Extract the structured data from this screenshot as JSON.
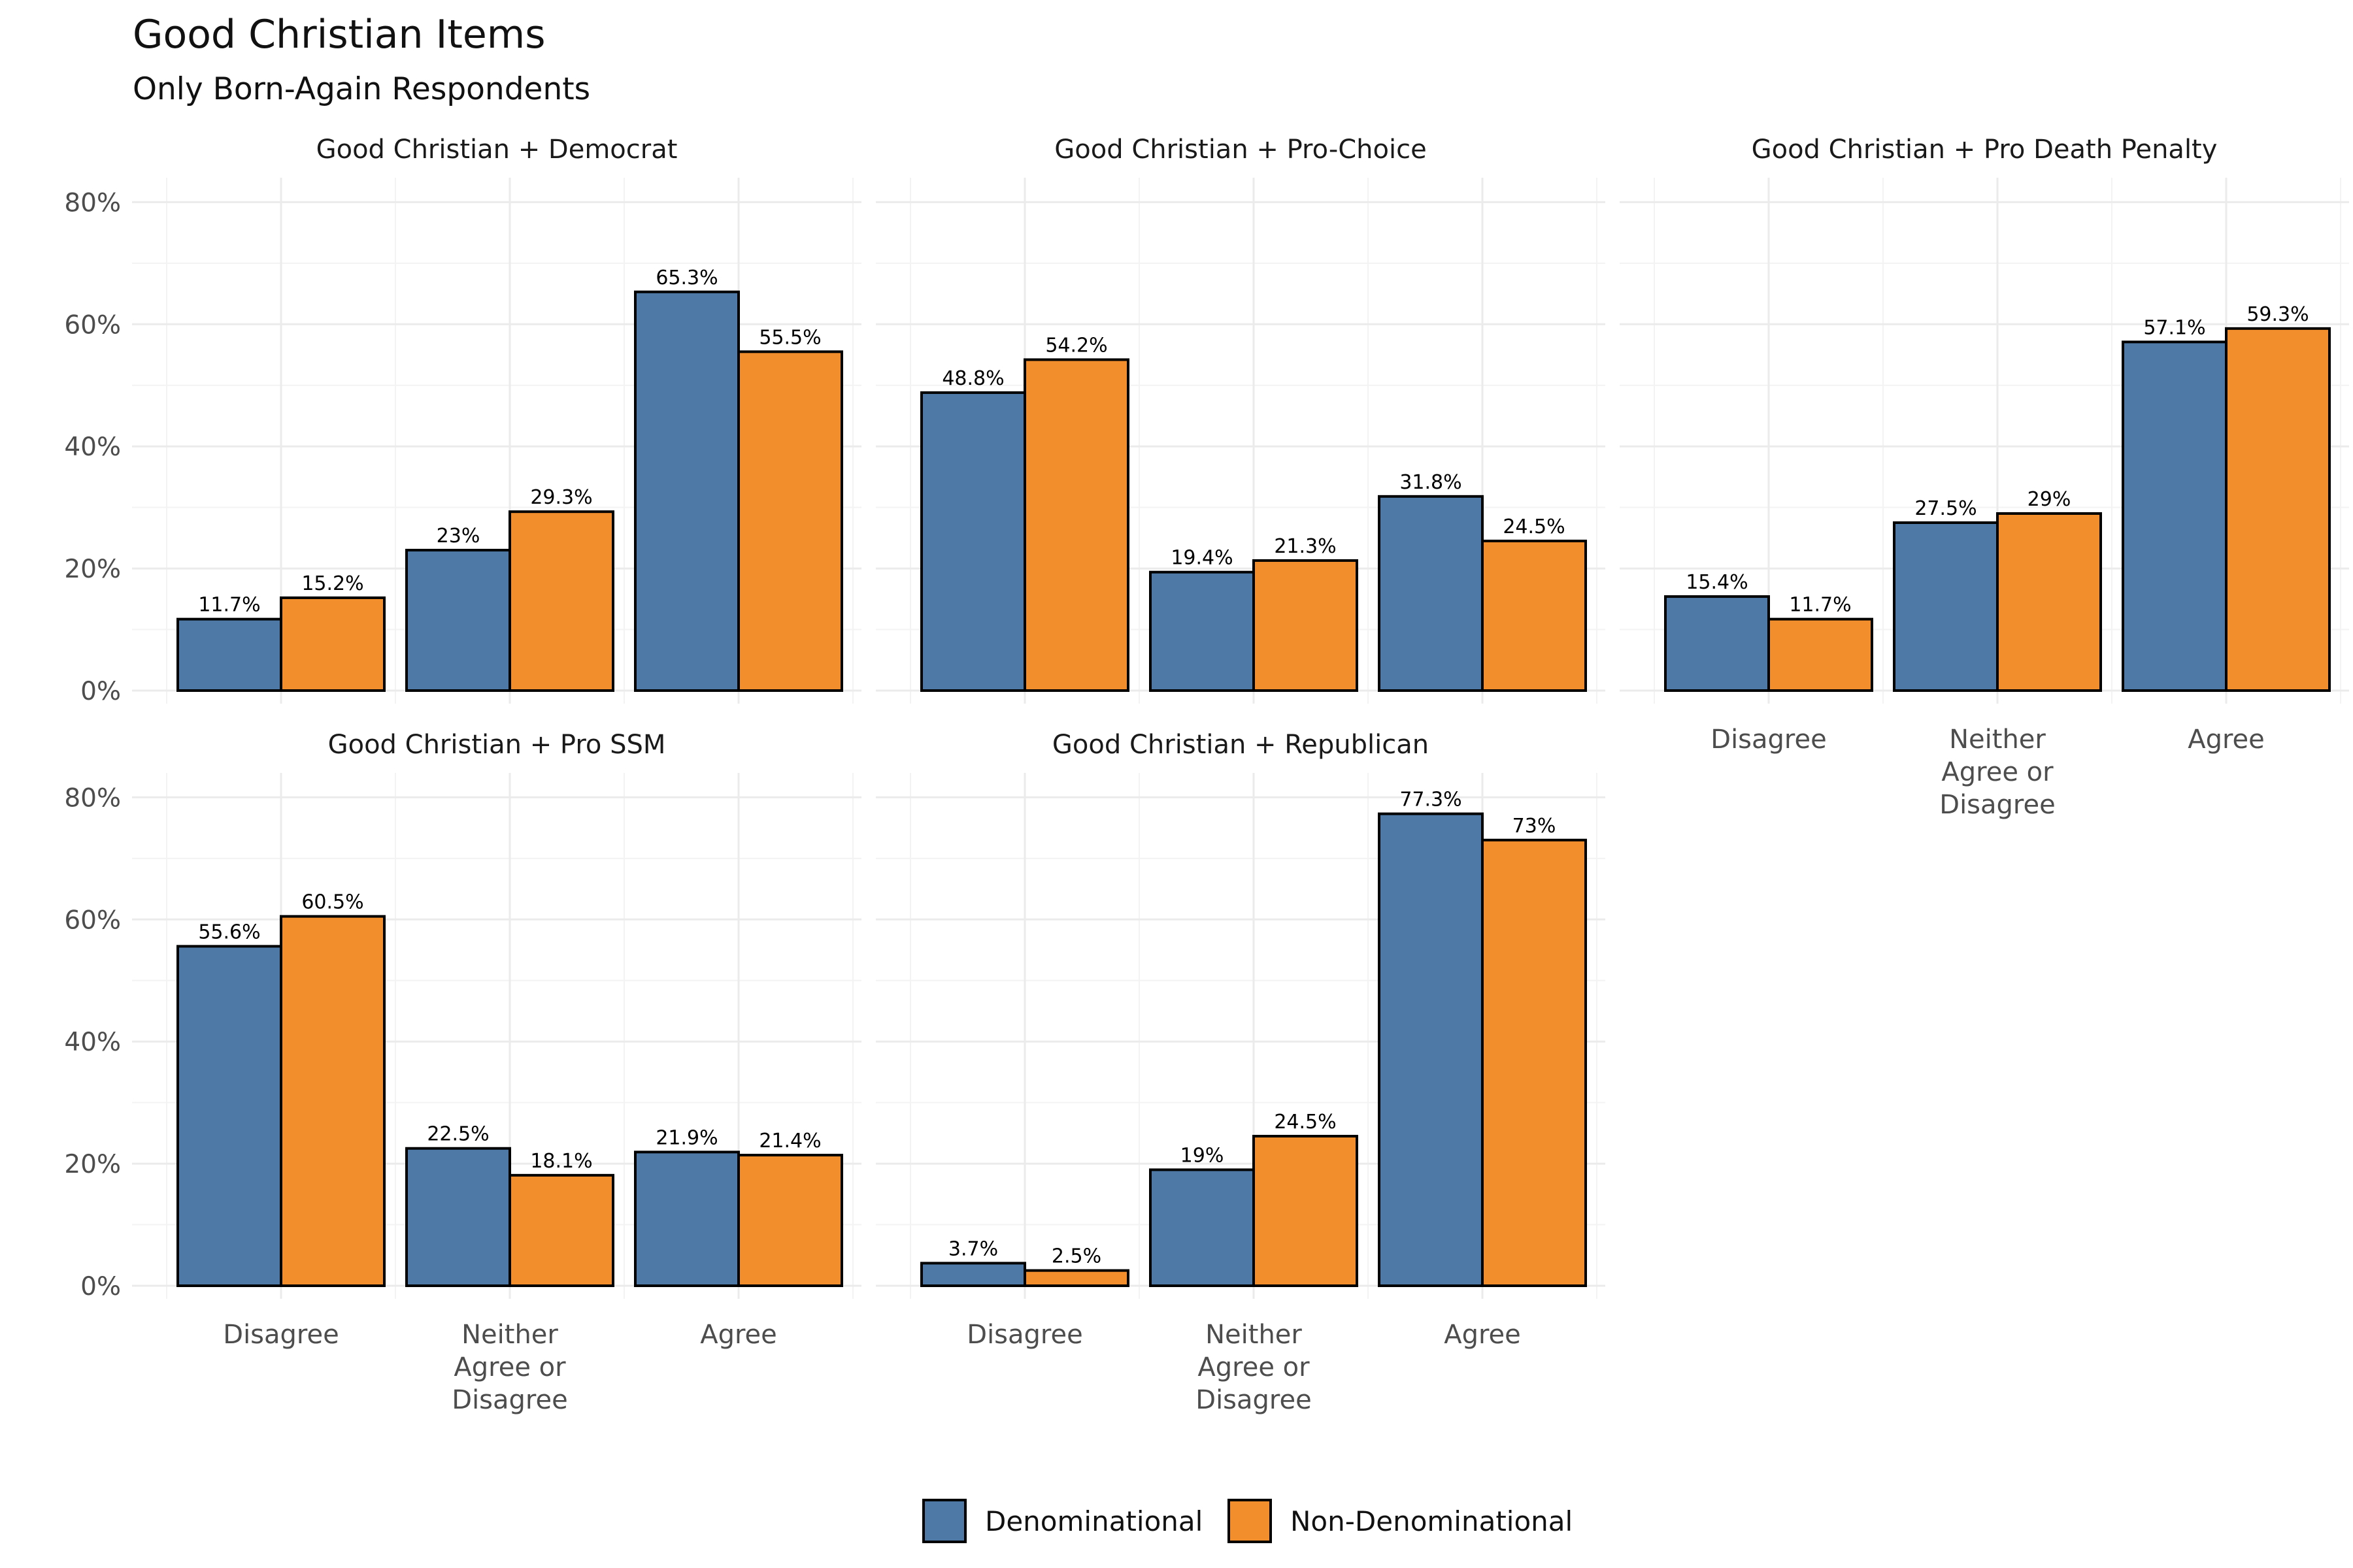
{
  "chart_data": {
    "type": "bar",
    "title": "Good Christian Items",
    "subtitle": "Only Born-Again Respondents",
    "categories": [
      "Disagree",
      "Neither Agree or Disagree",
      "Agree"
    ],
    "category_display": [
      [
        "Disagree"
      ],
      [
        "Neither",
        "Agree or",
        "Disagree"
      ],
      [
        "Agree"
      ]
    ],
    "y_ticks": [
      "0%",
      "20%",
      "40%",
      "60%",
      "80%"
    ],
    "ylim": [
      0,
      0.84
    ],
    "grid": true,
    "legend_position": "bottom",
    "series_names": [
      "Denominational",
      "Non-Denominational"
    ],
    "colors": [
      "#4e79a7",
      "#f28e2b"
    ],
    "panels": [
      {
        "title": "Good Christian + Democrat",
        "series": [
          {
            "name": "Denominational",
            "values": [
              0.117,
              0.23,
              0.653
            ],
            "labels": [
              "11.7%",
              "23%",
              "65.3%"
            ]
          },
          {
            "name": "Non-Denominational",
            "values": [
              0.152,
              0.293,
              0.555
            ],
            "labels": [
              "15.2%",
              "29.3%",
              "55.5%"
            ]
          }
        ]
      },
      {
        "title": "Good Christian + Pro-Choice",
        "series": [
          {
            "name": "Denominational",
            "values": [
              0.488,
              0.194,
              0.318
            ],
            "labels": [
              "48.8%",
              "19.4%",
              "31.8%"
            ]
          },
          {
            "name": "Non-Denominational",
            "values": [
              0.542,
              0.213,
              0.245
            ],
            "labels": [
              "54.2%",
              "21.3%",
              "24.5%"
            ]
          }
        ]
      },
      {
        "title": "Good Christian + Pro Death Penalty",
        "series": [
          {
            "name": "Denominational",
            "values": [
              0.154,
              0.275,
              0.571
            ],
            "labels": [
              "15.4%",
              "27.5%",
              "57.1%"
            ]
          },
          {
            "name": "Non-Denominational",
            "values": [
              0.117,
              0.29,
              0.593
            ],
            "labels": [
              "11.7%",
              "29%",
              "59.3%"
            ]
          }
        ]
      },
      {
        "title": "Good Christian + Pro SSM",
        "series": [
          {
            "name": "Denominational",
            "values": [
              0.556,
              0.225,
              0.219
            ],
            "labels": [
              "55.6%",
              "22.5%",
              "21.9%"
            ]
          },
          {
            "name": "Non-Denominational",
            "values": [
              0.605,
              0.181,
              0.214
            ],
            "labels": [
              "60.5%",
              "18.1%",
              "21.4%"
            ]
          }
        ]
      },
      {
        "title": "Good Christian + Republican",
        "series": [
          {
            "name": "Denominational",
            "values": [
              0.037,
              0.19,
              0.773
            ],
            "labels": [
              "3.7%",
              "19%",
              "77.3%"
            ]
          },
          {
            "name": "Non-Denominational",
            "values": [
              0.025,
              0.245,
              0.73
            ],
            "labels": [
              "2.5%",
              "24.5%",
              "73%"
            ]
          }
        ]
      }
    ]
  }
}
